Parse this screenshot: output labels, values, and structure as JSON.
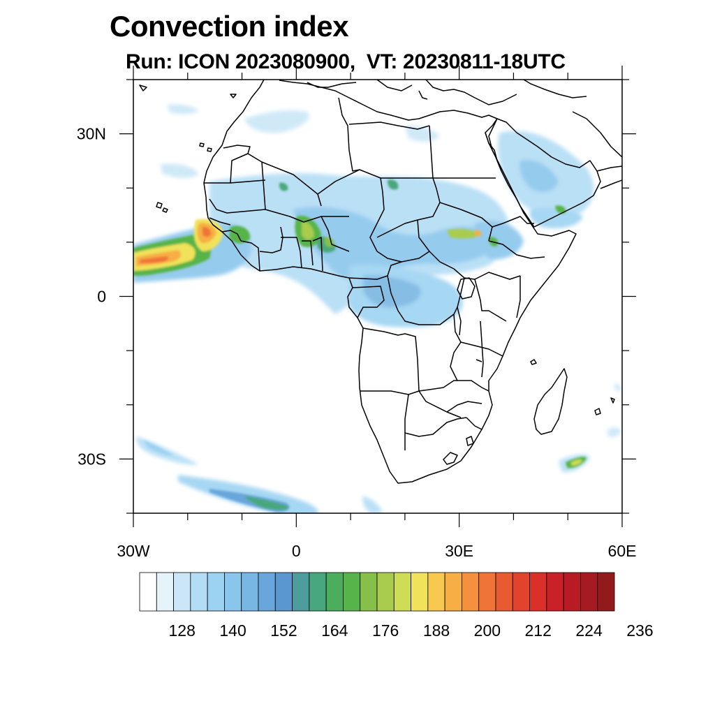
{
  "title": "Convection index",
  "subtitle": "Run: ICON 2023080900,  VT: 20230811-18UTC",
  "map": {
    "lon_range": [
      -30,
      60
    ],
    "lat_range": [
      -40,
      40
    ],
    "lat_ticks": [
      {
        "value": 30,
        "label": "30N"
      },
      {
        "value": 0,
        "label": "0"
      },
      {
        "value": -30,
        "label": "30S"
      }
    ],
    "lon_ticks": [
      {
        "value": -30,
        "label": "30W"
      },
      {
        "value": 0,
        "label": "0"
      },
      {
        "value": 30,
        "label": "30E"
      },
      {
        "value": 60,
        "label": "60E"
      }
    ],
    "background": "#ffffff",
    "coastline_color": "#000000"
  },
  "colorbar": {
    "colors": [
      "#ffffff",
      "#e6f3fb",
      "#cbe7f7",
      "#b3ddf5",
      "#9dd3f2",
      "#8ac6ec",
      "#78b6e3",
      "#69a6dc",
      "#5a96d0",
      "#4d9c9e",
      "#48a77c",
      "#4aae5c",
      "#57b44a",
      "#86c04a",
      "#a9cc4e",
      "#cfdc55",
      "#f0e25a",
      "#f8c94f",
      "#f7ae45",
      "#f5913e",
      "#f07337",
      "#e85a30",
      "#e1432d",
      "#d93029",
      "#c92127",
      "#b81b24",
      "#a61a21",
      "#921a1d"
    ],
    "labels": [
      "128",
      "140",
      "152",
      "164",
      "176",
      "188",
      "200",
      "212",
      "224",
      "236"
    ],
    "label_start_index": 2,
    "label_step": 3
  }
}
